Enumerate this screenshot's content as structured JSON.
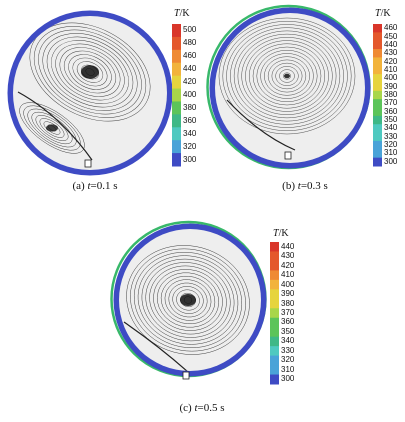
{
  "colorbar_unit_symbol": "T",
  "colorbar_unit": "/K",
  "panels": [
    {
      "id": "a",
      "caption_prefix": "(a)",
      "caption_var": "t",
      "caption_eq": "=0.1",
      "caption_unit": "s",
      "colorbar_ticks": [
        "500",
        "480",
        "460",
        "440",
        "420",
        "400",
        "380",
        "360",
        "340",
        "320",
        "300"
      ]
    },
    {
      "id": "b",
      "caption_prefix": "(b)",
      "caption_var": "t",
      "caption_eq": "=0.3",
      "caption_unit": "s",
      "colorbar_ticks": [
        "460",
        "450",
        "440",
        "430",
        "420",
        "410",
        "400",
        "390",
        "380",
        "370",
        "360",
        "350",
        "340",
        "330",
        "320",
        "310",
        "300"
      ]
    },
    {
      "id": "c",
      "caption_prefix": "(c)",
      "caption_var": "t",
      "caption_eq": "=0.5",
      "caption_unit": "s",
      "colorbar_ticks": [
        "440",
        "430",
        "420",
        "410",
        "400",
        "390",
        "380",
        "370",
        "360",
        "350",
        "340",
        "330",
        "320",
        "310",
        "300"
      ]
    }
  ],
  "colors": {
    "wall": "#3e4bc4",
    "hot": "#d9362a",
    "warm": "#f2a23a",
    "mid": "#38b86a",
    "cool": "#5fd0d8",
    "field": "#eeeeee",
    "streamline": "#1a1a1a"
  }
}
